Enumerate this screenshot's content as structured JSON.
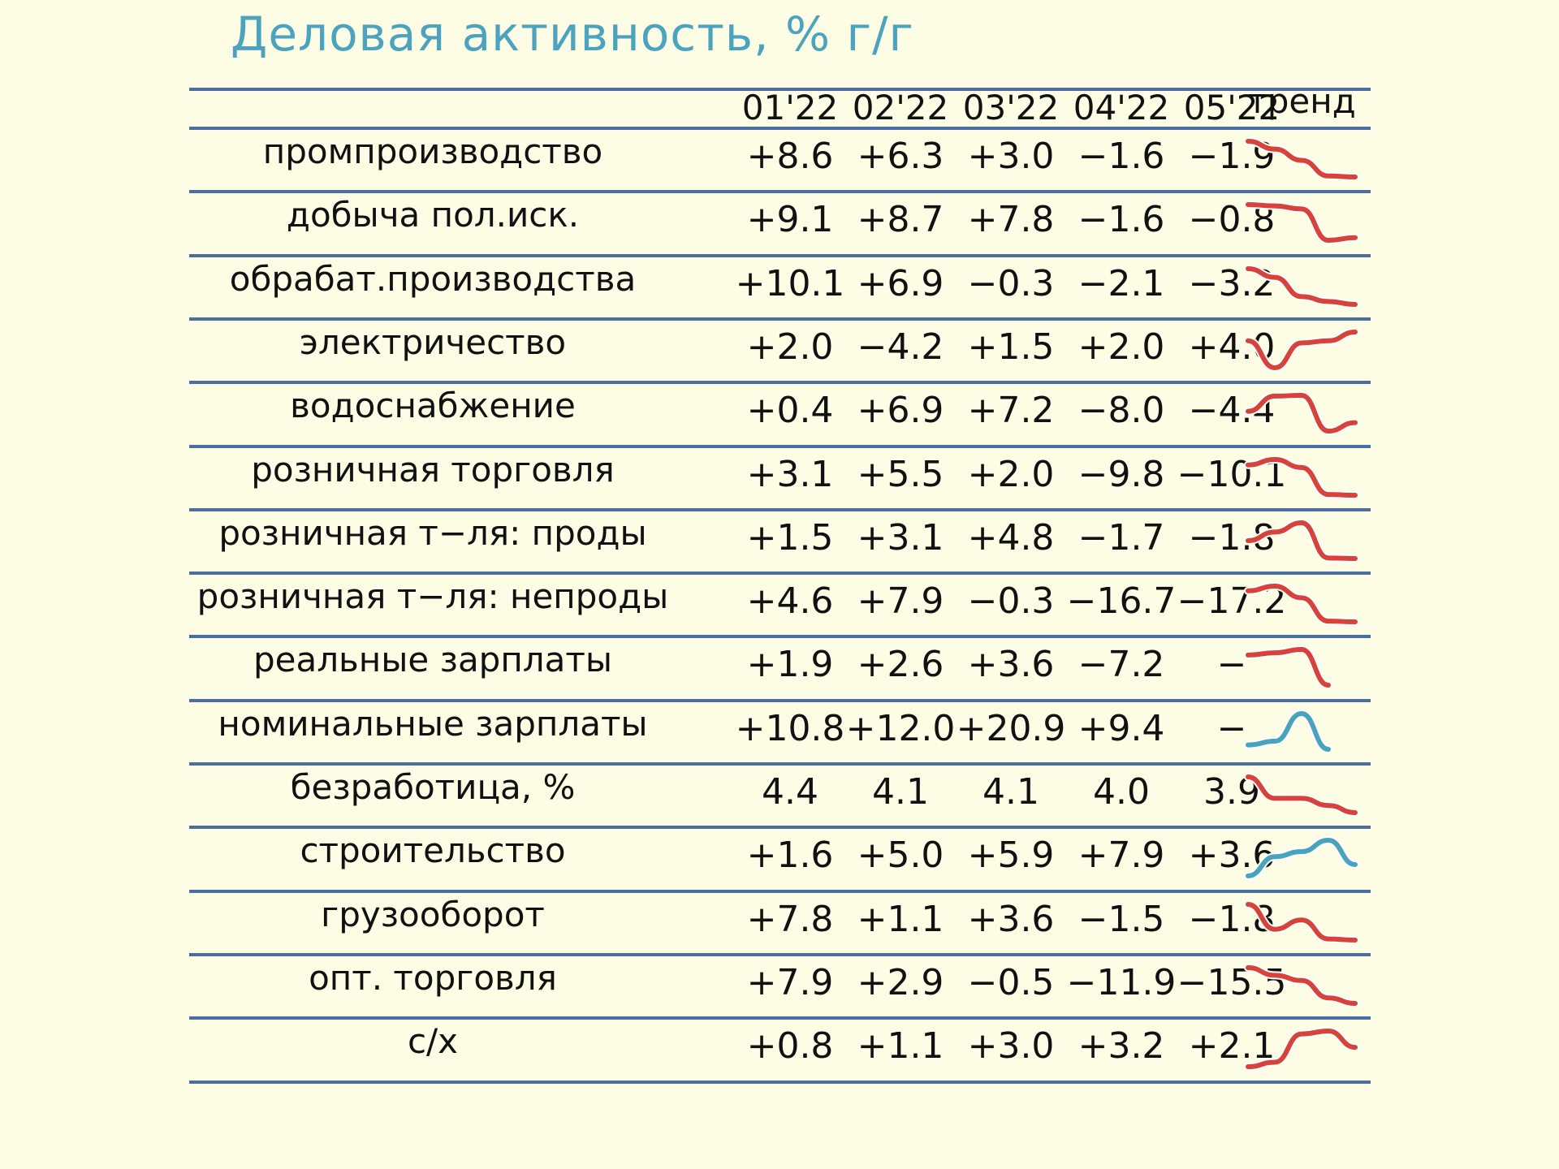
{
  "title": "Деловая активность, % г/г",
  "colors": {
    "title": "#4ba3bd",
    "rule": "#4a6ea0",
    "down": "#d7423a",
    "up": "#4aa3bd",
    "background": "#fdfde6"
  },
  "chart_data": {
    "type": "table",
    "columns": [
      "01'22",
      "02'22",
      "03'22",
      "04'22",
      "05'22"
    ],
    "trend_header": "тренд",
    "rows": [
      {
        "label": "промпроизводство",
        "values": [
          "+8.6",
          "+6.3",
          "+3.0",
          "−1.6",
          "−1.9"
        ],
        "trend": "down"
      },
      {
        "label": "добыча пол.иск.",
        "values": [
          "+9.1",
          "+8.7",
          "+7.8",
          "−1.6",
          "−0.8"
        ],
        "trend": "down"
      },
      {
        "label": "обрабат.производства",
        "values": [
          "+10.1",
          "+6.9",
          "−0.3",
          "−2.1",
          "−3.2"
        ],
        "trend": "down"
      },
      {
        "label": "электричество",
        "values": [
          "+2.0",
          "−4.2",
          "+1.5",
          "+2.0",
          "+4.0"
        ],
        "trend": "down"
      },
      {
        "label": "водоснабжение",
        "values": [
          "+0.4",
          "+6.9",
          "+7.2",
          "−8.0",
          "−4.4"
        ],
        "trend": "down"
      },
      {
        "label": "розничная торговля",
        "values": [
          "+3.1",
          "+5.5",
          "+2.0",
          "−9.8",
          "−10.1"
        ],
        "trend": "down"
      },
      {
        "label": "розничная т−ля: проды",
        "values": [
          "+1.5",
          "+3.1",
          "+4.8",
          "−1.7",
          "−1.8"
        ],
        "trend": "down"
      },
      {
        "label": "розничная т−ля: непроды",
        "values": [
          "+4.6",
          "+7.9",
          "−0.3",
          "−16.7",
          "−17.2"
        ],
        "trend": "down"
      },
      {
        "label": "реальные зарплаты",
        "values": [
          "+1.9",
          "+2.6",
          "+3.6",
          "−7.2",
          "−"
        ],
        "trend": "down"
      },
      {
        "label": "номинальные зарплаты",
        "values": [
          "+10.8",
          "+12.0",
          "+20.9",
          "+9.4",
          "−"
        ],
        "trend": "up"
      },
      {
        "label": "безработица, %",
        "values": [
          "4.4",
          "4.1",
          "4.1",
          "4.0",
          "3.9"
        ],
        "trend": "down"
      },
      {
        "label": "строительство",
        "values": [
          "+1.6",
          "+5.0",
          "+5.9",
          "+7.9",
          "+3.6"
        ],
        "trend": "up"
      },
      {
        "label": "грузооборот",
        "values": [
          "+7.8",
          "+1.1",
          "+3.6",
          "−1.5",
          "−1.8"
        ],
        "trend": "down"
      },
      {
        "label": "опт. торговля",
        "values": [
          "+7.9",
          "+2.9",
          "−0.5",
          "−11.9",
          "−15.5"
        ],
        "trend": "down"
      },
      {
        "label": "с/х",
        "values": [
          "+0.8",
          "+1.1",
          "+3.0",
          "+3.2",
          "+2.1"
        ],
        "trend": "down"
      }
    ]
  }
}
